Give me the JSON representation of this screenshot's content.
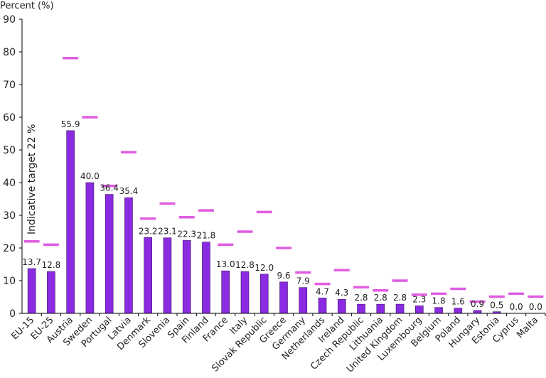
{
  "chart_data": {
    "type": "bar",
    "ylabel": "Percent (%)",
    "ylim": [
      0,
      90
    ],
    "yticks": [
      0,
      10,
      20,
      30,
      40,
      50,
      60,
      70,
      80,
      90
    ],
    "grid": false,
    "annotation": "Indicative target 22 %",
    "colors": {
      "bar": "#8a2be2",
      "target": "#e05ce0",
      "axis": "#000000"
    },
    "categories": [
      "EU-15",
      "EU-25",
      "Austria",
      "Sweden",
      "Portugal",
      "Latvia",
      "Denmark",
      "Slovenia",
      "Spain",
      "Finland",
      "France",
      "Italy",
      "Slovak Republic",
      "Greece",
      "Germany",
      "Netherlands",
      "Ireland",
      "Czech Republic",
      "Lithuania",
      "United Kingdom",
      "Luxembourg",
      "Belgium",
      "Poland",
      "Hungary",
      "Estonia",
      "Cyprus",
      "Malta"
    ],
    "series": [
      {
        "type": "bar",
        "values": [
          13.7,
          12.8,
          55.9,
          40.0,
          36.4,
          35.4,
          23.2,
          23.1,
          22.3,
          21.8,
          13.0,
          12.8,
          12.0,
          9.6,
          7.9,
          4.7,
          4.3,
          2.8,
          2.8,
          2.8,
          2.3,
          1.8,
          1.6,
          0.9,
          0.5,
          0.0,
          0.0
        ],
        "labels": [
          "13.7",
          "12.8",
          "55.9",
          "40.0",
          "36.4",
          "35.4",
          "23.2",
          "23.1",
          "22.3",
          "21.8",
          "13.0",
          "12.8",
          "12.0",
          "9.6",
          "7.9",
          "4.7",
          "4.3",
          "2.8",
          "2.8",
          "2.8",
          "2.3",
          "1.8",
          "1.6",
          "0.9",
          "0.5",
          "0.0",
          "0.0"
        ]
      },
      {
        "type": "target",
        "values": [
          22.0,
          21.0,
          78.1,
          60.0,
          39.0,
          49.3,
          29.0,
          33.6,
          29.4,
          31.5,
          21.0,
          25.0,
          31.0,
          20.0,
          12.5,
          9.0,
          13.2,
          8.0,
          7.0,
          10.0,
          5.7,
          6.0,
          7.5,
          3.6,
          5.1,
          6.0,
          5.1
        ]
      }
    ]
  }
}
